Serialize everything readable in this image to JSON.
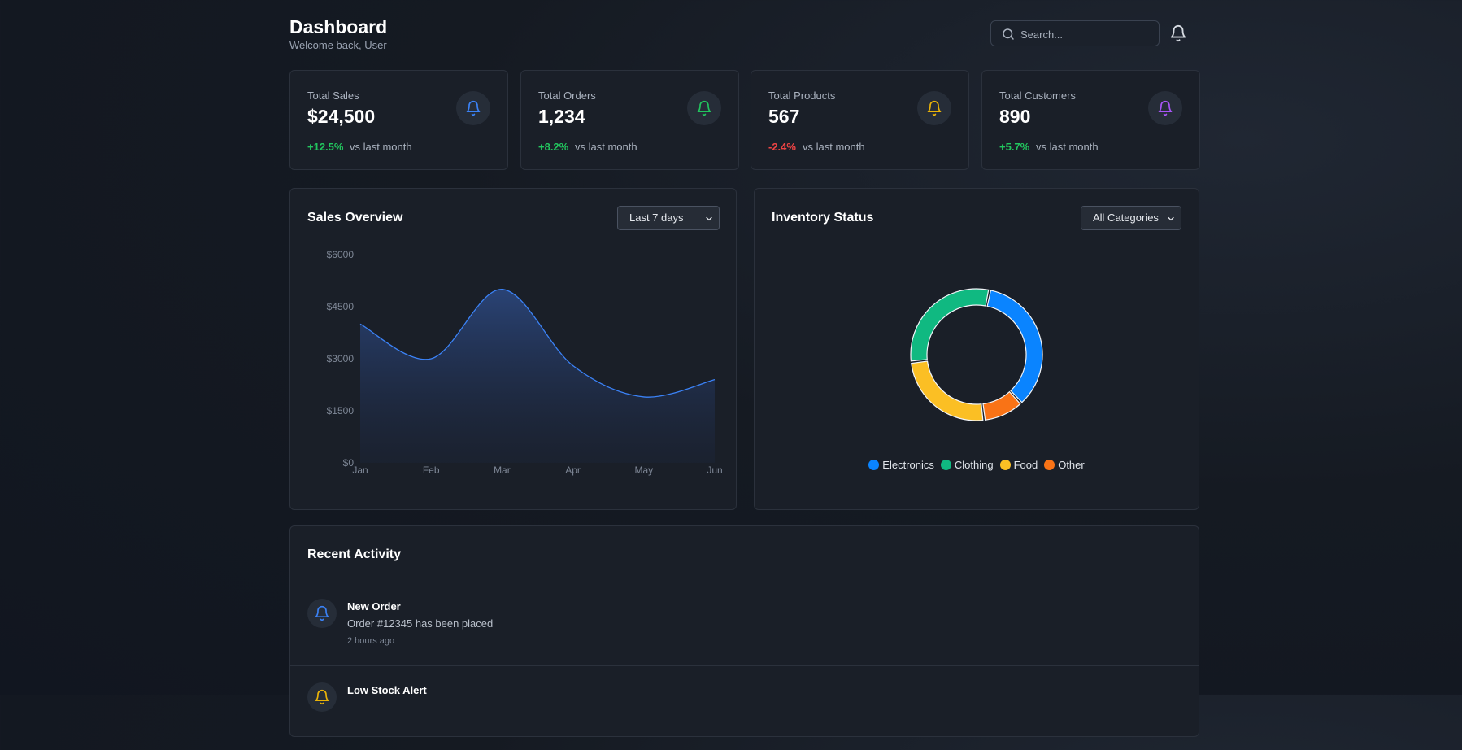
{
  "header": {
    "title": "Dashboard",
    "subtitle": "Welcome back, User",
    "search_placeholder": "Search...",
    "notification_icon": "bell-icon"
  },
  "stats": [
    {
      "label": "Total Sales",
      "value": "$24,500",
      "change": "+12.5%",
      "compare": "vs last month",
      "trend": "up",
      "icon": "bell-icon",
      "color": "#3b82f6"
    },
    {
      "label": "Total Orders",
      "value": "1,234",
      "change": "+8.2%",
      "compare": "vs last month",
      "trend": "up",
      "icon": "bell-icon",
      "color": "#22c55e"
    },
    {
      "label": "Total Products",
      "value": "567",
      "change": "-2.4%",
      "compare": "vs last month",
      "trend": "down",
      "icon": "bell-icon",
      "color": "#eab308"
    },
    {
      "label": "Total Customers",
      "value": "890",
      "change": "+5.7%",
      "compare": "vs last month",
      "trend": "up",
      "icon": "bell-icon",
      "color": "#a855f7"
    }
  ],
  "colors": {
    "positive": "#22c55e",
    "negative": "#ef4444",
    "line": "#3b82f6"
  },
  "sales_overview": {
    "title": "Sales Overview",
    "range_selected": "Last 7 days"
  },
  "inventory_status": {
    "title": "Inventory Status",
    "category_selected": "All Categories"
  },
  "chart_data": [
    {
      "type": "area",
      "title": "Sales Overview",
      "x": [
        "Jan",
        "Feb",
        "Mar",
        "Apr",
        "May",
        "Jun"
      ],
      "series": [
        {
          "values": [
            4000,
            3000,
            5000,
            2800,
            1900,
            2400
          ]
        }
      ],
      "yticks": [
        "$6000",
        "$4500",
        "$3000",
        "$1500",
        "$0"
      ],
      "ylim": [
        0,
        6000
      ],
      "grid": false
    },
    {
      "type": "pie",
      "title": "Inventory Status",
      "categories": [
        "Electronics",
        "Clothing",
        "Food",
        "Other"
      ],
      "values": [
        35,
        30,
        25,
        10
      ],
      "colors": [
        "#0a84ff",
        "#10b981",
        "#fbbf24",
        "#f97316"
      ],
      "donut": true,
      "legend": "bottom"
    }
  ],
  "activity": {
    "title": "Recent Activity",
    "items": [
      {
        "title": "New Order",
        "description": "Order #12345 has been placed",
        "time": "2 hours ago",
        "icon": "bell-icon",
        "color": "#3b82f6"
      },
      {
        "title": "Low Stock Alert",
        "description": "",
        "time": "",
        "icon": "bell-icon",
        "color": "#eab308"
      }
    ]
  }
}
